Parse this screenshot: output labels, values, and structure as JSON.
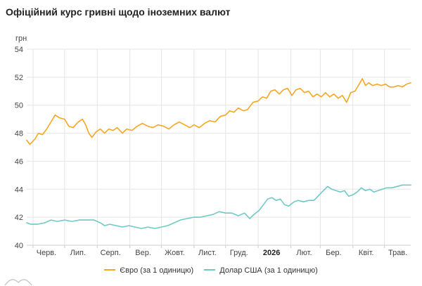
{
  "title": "Офіційний курс гривні щодо іноземних валют",
  "colors": {
    "eur": "#f5a623",
    "usd": "#6fc9c5",
    "grid": "#e5e5e5",
    "axis": "#cccccc"
  },
  "chart_data": {
    "type": "line",
    "ylabel": "грн",
    "ylim": [
      40,
      54
    ],
    "yticks": [
      40,
      42,
      44,
      46,
      48,
      50,
      52,
      54
    ],
    "xlim": [
      "2025-05-26",
      "2026-05-26"
    ],
    "xticks": [
      {
        "label": "Черв.",
        "date": "2025-06-01"
      },
      {
        "label": "Лип.",
        "date": "2025-07-01"
      },
      {
        "label": "Серп.",
        "date": "2025-08-01"
      },
      {
        "label": "Вер.",
        "date": "2025-09-01"
      },
      {
        "label": "Жовт.",
        "date": "2025-10-01"
      },
      {
        "label": "Лист.",
        "date": "2025-11-01"
      },
      {
        "label": "Груд.",
        "date": "2025-12-01"
      },
      {
        "label": "2026",
        "date": "2026-01-01",
        "bold": true
      },
      {
        "label": "Лют.",
        "date": "2026-02-01"
      },
      {
        "label": "Бер.",
        "date": "2026-03-01"
      },
      {
        "label": "Квіт.",
        "date": "2026-04-01"
      },
      {
        "label": "Трав.",
        "date": "2026-05-01"
      }
    ],
    "grid": true,
    "legend_position": "bottom",
    "series": [
      {
        "name": "Євро (за 1 одиницю)",
        "color": "#f5a623",
        "points": [
          [
            "2025-05-26",
            47.5
          ],
          [
            "2025-05-29",
            47.2
          ],
          [
            "2025-06-03",
            47.6
          ],
          [
            "2025-06-06",
            48.0
          ],
          [
            "2025-06-10",
            47.9
          ],
          [
            "2025-06-14",
            48.3
          ],
          [
            "2025-06-18",
            48.8
          ],
          [
            "2025-06-22",
            49.3
          ],
          [
            "2025-06-26",
            49.1
          ],
          [
            "2025-07-01",
            49.0
          ],
          [
            "2025-07-05",
            48.5
          ],
          [
            "2025-07-09",
            48.4
          ],
          [
            "2025-07-14",
            48.8
          ],
          [
            "2025-07-18",
            49.0
          ],
          [
            "2025-07-21",
            48.6
          ],
          [
            "2025-07-24",
            48.0
          ],
          [
            "2025-07-27",
            47.7
          ],
          [
            "2025-07-31",
            48.1
          ],
          [
            "2025-08-04",
            48.3
          ],
          [
            "2025-08-08",
            48.0
          ],
          [
            "2025-08-12",
            48.3
          ],
          [
            "2025-08-16",
            48.2
          ],
          [
            "2025-08-20",
            48.4
          ],
          [
            "2025-08-25",
            48.0
          ],
          [
            "2025-08-29",
            48.3
          ],
          [
            "2025-09-03",
            48.2
          ],
          [
            "2025-09-08",
            48.5
          ],
          [
            "2025-09-13",
            48.7
          ],
          [
            "2025-09-18",
            48.5
          ],
          [
            "2025-09-23",
            48.4
          ],
          [
            "2025-09-28",
            48.6
          ],
          [
            "2025-10-03",
            48.5
          ],
          [
            "2025-10-08",
            48.3
          ],
          [
            "2025-10-13",
            48.6
          ],
          [
            "2025-10-18",
            48.8
          ],
          [
            "2025-10-23",
            48.6
          ],
          [
            "2025-10-28",
            48.4
          ],
          [
            "2025-11-01",
            48.6
          ],
          [
            "2025-11-06",
            48.4
          ],
          [
            "2025-11-11",
            48.7
          ],
          [
            "2025-11-16",
            48.9
          ],
          [
            "2025-11-21",
            48.8
          ],
          [
            "2025-11-26",
            49.2
          ],
          [
            "2025-12-01",
            49.3
          ],
          [
            "2025-12-05",
            49.6
          ],
          [
            "2025-12-09",
            49.5
          ],
          [
            "2025-12-13",
            49.8
          ],
          [
            "2025-12-18",
            49.6
          ],
          [
            "2025-12-22",
            49.7
          ],
          [
            "2025-12-27",
            50.2
          ],
          [
            "2026-01-01",
            50.3
          ],
          [
            "2026-01-05",
            50.6
          ],
          [
            "2026-01-09",
            50.5
          ],
          [
            "2026-01-13",
            51.0
          ],
          [
            "2026-01-17",
            51.1
          ],
          [
            "2026-01-21",
            50.8
          ],
          [
            "2026-01-25",
            51.1
          ],
          [
            "2026-01-29",
            51.2
          ],
          [
            "2026-02-02",
            50.7
          ],
          [
            "2026-02-06",
            51.1
          ],
          [
            "2026-02-10",
            51.2
          ],
          [
            "2026-02-14",
            50.9
          ],
          [
            "2026-02-18",
            51.0
          ],
          [
            "2026-02-22",
            50.6
          ],
          [
            "2026-02-26",
            50.8
          ],
          [
            "2026-03-02",
            50.6
          ],
          [
            "2026-03-06",
            50.9
          ],
          [
            "2026-03-10",
            50.6
          ],
          [
            "2026-03-14",
            50.8
          ],
          [
            "2026-03-18",
            50.5
          ],
          [
            "2026-03-22",
            50.7
          ],
          [
            "2026-03-26",
            50.2
          ],
          [
            "2026-03-30",
            50.9
          ],
          [
            "2026-04-03",
            51.0
          ],
          [
            "2026-04-07",
            51.5
          ],
          [
            "2026-04-10",
            51.9
          ],
          [
            "2026-04-13",
            51.4
          ],
          [
            "2026-04-16",
            51.6
          ],
          [
            "2026-04-20",
            51.4
          ],
          [
            "2026-04-24",
            51.5
          ],
          [
            "2026-04-28",
            51.4
          ],
          [
            "2026-05-02",
            51.5
          ],
          [
            "2026-05-06",
            51.3
          ],
          [
            "2026-05-10",
            51.3
          ],
          [
            "2026-05-14",
            51.4
          ],
          [
            "2026-05-18",
            51.3
          ],
          [
            "2026-05-22",
            51.5
          ],
          [
            "2026-05-26",
            51.6
          ]
        ]
      },
      {
        "name": "Долар США (за 1 одиницю)",
        "color": "#6fc9c5",
        "points": [
          [
            "2025-05-26",
            41.6
          ],
          [
            "2025-05-30",
            41.5
          ],
          [
            "2025-06-05",
            41.5
          ],
          [
            "2025-06-12",
            41.6
          ],
          [
            "2025-06-18",
            41.8
          ],
          [
            "2025-06-24",
            41.7
          ],
          [
            "2025-07-01",
            41.8
          ],
          [
            "2025-07-08",
            41.7
          ],
          [
            "2025-07-15",
            41.8
          ],
          [
            "2025-07-22",
            41.8
          ],
          [
            "2025-07-29",
            41.8
          ],
          [
            "2025-08-04",
            41.6
          ],
          [
            "2025-08-08",
            41.4
          ],
          [
            "2025-08-13",
            41.5
          ],
          [
            "2025-08-19",
            41.4
          ],
          [
            "2025-08-25",
            41.3
          ],
          [
            "2025-08-31",
            41.4
          ],
          [
            "2025-09-06",
            41.3
          ],
          [
            "2025-09-12",
            41.2
          ],
          [
            "2025-09-18",
            41.3
          ],
          [
            "2025-09-25",
            41.2
          ],
          [
            "2025-10-01",
            41.3
          ],
          [
            "2025-10-07",
            41.4
          ],
          [
            "2025-10-13",
            41.6
          ],
          [
            "2025-10-19",
            41.8
          ],
          [
            "2025-10-25",
            41.9
          ],
          [
            "2025-11-01",
            42.0
          ],
          [
            "2025-11-07",
            42.0
          ],
          [
            "2025-11-13",
            42.1
          ],
          [
            "2025-11-19",
            42.2
          ],
          [
            "2025-11-25",
            42.4
          ],
          [
            "2025-12-01",
            42.3
          ],
          [
            "2025-12-07",
            42.3
          ],
          [
            "2025-12-13",
            42.1
          ],
          [
            "2025-12-19",
            42.3
          ],
          [
            "2025-12-24",
            41.9
          ],
          [
            "2025-12-28",
            42.2
          ],
          [
            "2026-01-02",
            42.5
          ],
          [
            "2026-01-06",
            42.9
          ],
          [
            "2026-01-10",
            43.3
          ],
          [
            "2026-01-14",
            43.4
          ],
          [
            "2026-01-18",
            43.2
          ],
          [
            "2026-01-22",
            43.3
          ],
          [
            "2026-01-26",
            42.9
          ],
          [
            "2026-01-30",
            42.8
          ],
          [
            "2026-02-04",
            43.1
          ],
          [
            "2026-02-08",
            43.2
          ],
          [
            "2026-02-13",
            43.1
          ],
          [
            "2026-02-18",
            43.2
          ],
          [
            "2026-02-23",
            43.2
          ],
          [
            "2026-02-28",
            43.6
          ],
          [
            "2026-03-04",
            43.9
          ],
          [
            "2026-03-08",
            44.2
          ],
          [
            "2026-03-12",
            44.0
          ],
          [
            "2026-03-16",
            43.9
          ],
          [
            "2026-03-20",
            43.8
          ],
          [
            "2026-03-24",
            43.9
          ],
          [
            "2026-03-28",
            43.5
          ],
          [
            "2026-04-01",
            43.6
          ],
          [
            "2026-04-05",
            43.8
          ],
          [
            "2026-04-09",
            44.1
          ],
          [
            "2026-04-13",
            43.9
          ],
          [
            "2026-04-17",
            44.0
          ],
          [
            "2026-04-21",
            43.8
          ],
          [
            "2026-04-25",
            43.9
          ],
          [
            "2026-04-29",
            44.0
          ],
          [
            "2026-05-03",
            44.1
          ],
          [
            "2026-05-08",
            44.1
          ],
          [
            "2026-05-13",
            44.2
          ],
          [
            "2026-05-18",
            44.3
          ],
          [
            "2026-05-26",
            44.3
          ]
        ]
      }
    ]
  }
}
